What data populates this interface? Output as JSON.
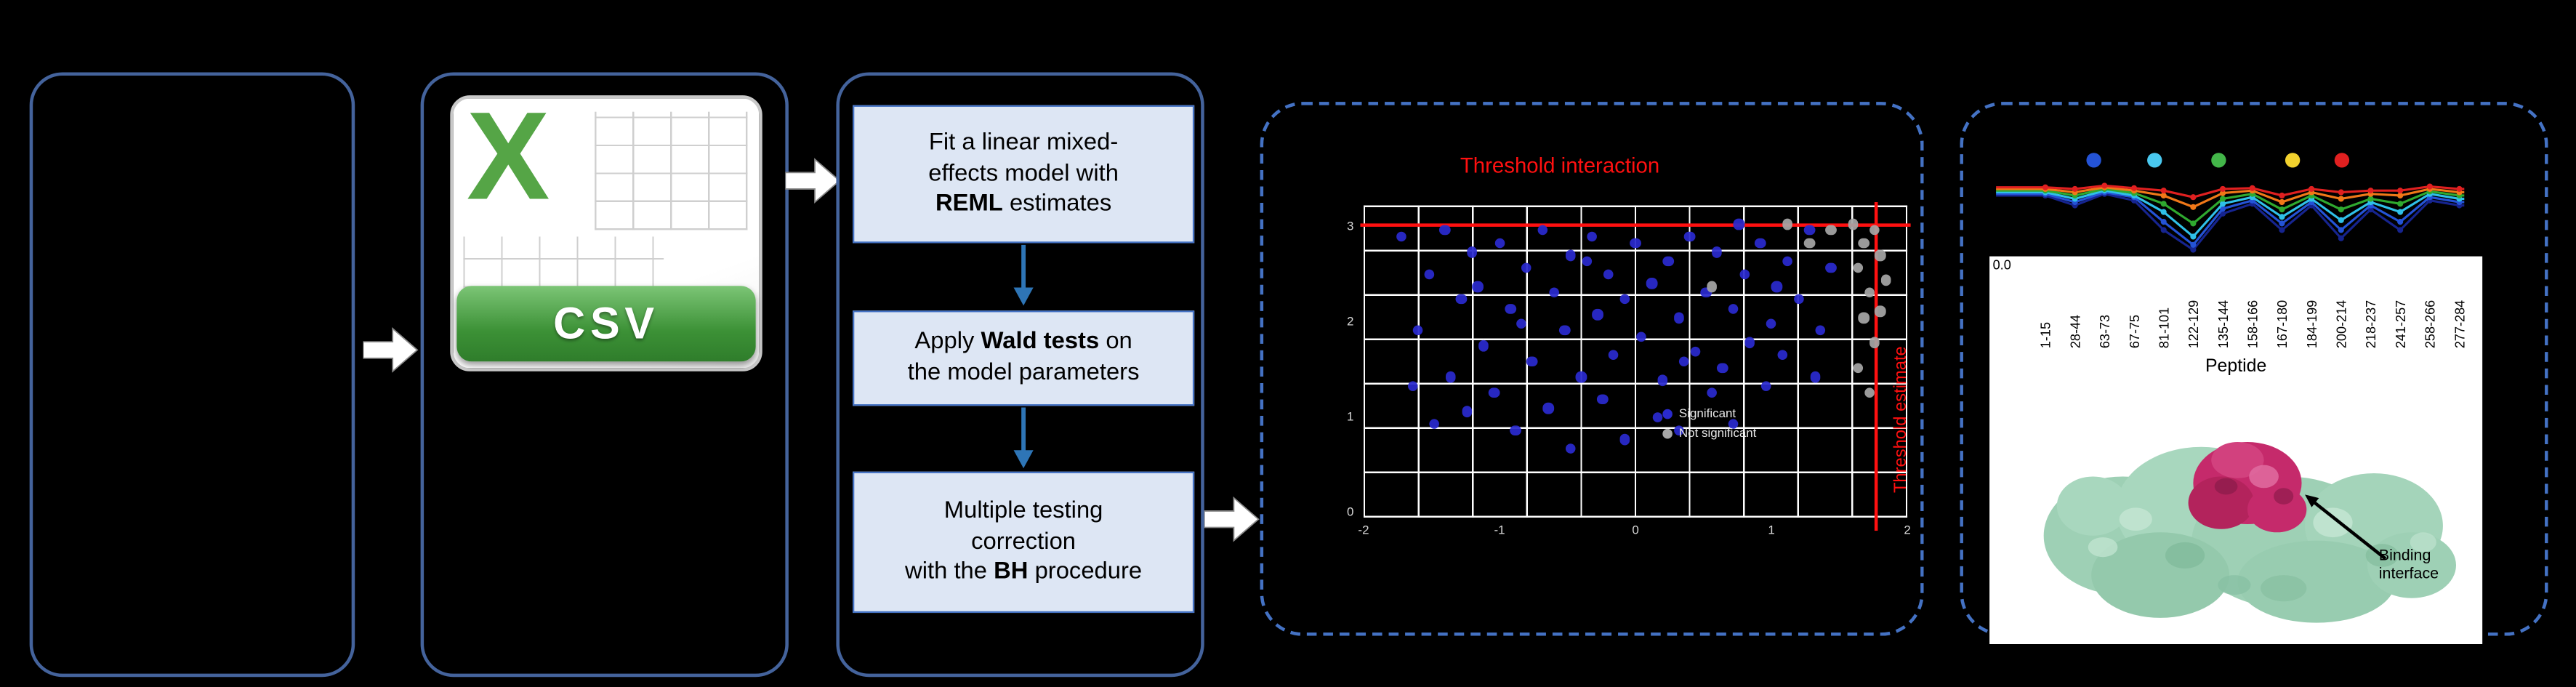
{
  "colors": {
    "background": "#000000",
    "solid_box_border": "#44639C",
    "dashed_box_border": "#4472C4",
    "step_fill": "#DDE6F4",
    "step_border": "#4472C4",
    "down_arrow": "#2E75B6",
    "block_arrow": "#FFFFFF",
    "threshold_red": "#FF1010",
    "significant_blue": "#2A2ACF",
    "nonsignificant_gray": "#A6A6A6",
    "excel_green": "#55A546",
    "binding_magenta": "#C52A6B",
    "protein_green": "#9ED0B5"
  },
  "csv_icon": {
    "letter": "X",
    "label": "CSV"
  },
  "steps": [
    {
      "pre": "Fit a linear mixed-\neffects model with\n",
      "bold": "REML",
      "post": " estimates"
    },
    {
      "pre": "Apply ",
      "bold": "Wald tests",
      "post": " on\nthe model parameters"
    },
    {
      "pre": "Multiple testing\ncorrection\nwith the ",
      "bold": "BH",
      "post": " procedure"
    }
  ],
  "volcano": {
    "type": "scatter",
    "title": "Threshold interaction",
    "side_label": "Threshold estimate",
    "x_ticks": [
      "-2",
      "-1",
      "0",
      "1",
      "2"
    ],
    "y_ticks": [
      "0",
      "1",
      "2",
      "3"
    ],
    "legend": [
      {
        "label": "Significant",
        "color": "#2A2ACF"
      },
      {
        "label": "Not significant",
        "color": "#A6A6A6"
      }
    ],
    "points_significant": [
      [
        0.07,
        0.1
      ],
      [
        0.12,
        0.22
      ],
      [
        0.15,
        0.08
      ],
      [
        0.18,
        0.3
      ],
      [
        0.2,
        0.15
      ],
      [
        0.22,
        0.45
      ],
      [
        0.25,
        0.12
      ],
      [
        0.27,
        0.33
      ],
      [
        0.3,
        0.2
      ],
      [
        0.31,
        0.5
      ],
      [
        0.33,
        0.08
      ],
      [
        0.35,
        0.28
      ],
      [
        0.37,
        0.4
      ],
      [
        0.38,
        0.16
      ],
      [
        0.4,
        0.55
      ],
      [
        0.42,
        0.1
      ],
      [
        0.43,
        0.35
      ],
      [
        0.45,
        0.22
      ],
      [
        0.46,
        0.48
      ],
      [
        0.48,
        0.3
      ],
      [
        0.5,
        0.12
      ],
      [
        0.51,
        0.42
      ],
      [
        0.53,
        0.25
      ],
      [
        0.55,
        0.56
      ],
      [
        0.56,
        0.18
      ],
      [
        0.58,
        0.36
      ],
      [
        0.6,
        0.1
      ],
      [
        0.61,
        0.47
      ],
      [
        0.63,
        0.28
      ],
      [
        0.65,
        0.15
      ],
      [
        0.66,
        0.52
      ],
      [
        0.68,
        0.33
      ],
      [
        0.7,
        0.22
      ],
      [
        0.71,
        0.44
      ],
      [
        0.73,
        0.12
      ],
      [
        0.75,
        0.38
      ],
      [
        0.76,
        0.26
      ],
      [
        0.78,
        0.18
      ],
      [
        0.8,
        0.3
      ],
      [
        0.82,
        0.08
      ],
      [
        0.24,
        0.6
      ],
      [
        0.34,
        0.65
      ],
      [
        0.44,
        0.62
      ],
      [
        0.54,
        0.68
      ],
      [
        0.64,
        0.6
      ],
      [
        0.1,
        0.4
      ],
      [
        0.16,
        0.55
      ],
      [
        0.48,
        0.75
      ],
      [
        0.58,
        0.72
      ],
      [
        0.28,
        0.72
      ],
      [
        0.38,
        0.78
      ],
      [
        0.68,
        0.7
      ],
      [
        0.74,
        0.58
      ],
      [
        0.84,
        0.4
      ],
      [
        0.86,
        0.2
      ],
      [
        0.13,
        0.7
      ],
      [
        0.21,
        0.26
      ],
      [
        0.29,
        0.38
      ],
      [
        0.41,
        0.18
      ],
      [
        0.59,
        0.5
      ],
      [
        0.69,
        0.06
      ],
      [
        0.77,
        0.48
      ],
      [
        0.83,
        0.55
      ],
      [
        0.09,
        0.58
      ],
      [
        0.19,
        0.66
      ]
    ],
    "points_not_significant": [
      [
        0.9,
        0.06
      ],
      [
        0.92,
        0.12
      ],
      [
        0.94,
        0.08
      ],
      [
        0.91,
        0.2
      ],
      [
        0.93,
        0.28
      ],
      [
        0.95,
        0.16
      ],
      [
        0.92,
        0.36
      ],
      [
        0.94,
        0.44
      ],
      [
        0.91,
        0.52
      ],
      [
        0.93,
        0.6
      ],
      [
        0.95,
        0.34
      ],
      [
        0.96,
        0.24
      ],
      [
        0.78,
        0.06
      ],
      [
        0.82,
        0.12
      ],
      [
        0.86,
        0.08
      ],
      [
        0.64,
        0.26
      ]
    ]
  },
  "uptake": {
    "type": "line",
    "y_tick_label": "0.0",
    "x_axis_label": "Peptide",
    "peptides": [
      "1-15",
      "28-44",
      "63-73",
      "67-75",
      "81-101",
      "122-129",
      "135-144",
      "158-166",
      "167-180",
      "184-199",
      "200-214",
      "218-237",
      "241-257",
      "258-266",
      "277-284"
    ],
    "legend_dot_colors": [
      "#2453D6",
      "#49C8EF",
      "#43B649",
      "#F2D22E",
      "#E02020"
    ],
    "series": [
      {
        "name": "navy",
        "color": "#16248F",
        "values": [
          0.72,
          0.6,
          0.74,
          0.66,
          0.3,
          0.06,
          0.5,
          0.62,
          0.3,
          0.6,
          0.2,
          0.55,
          0.3,
          0.66,
          0.6
        ]
      },
      {
        "name": "blue",
        "color": "#2453D6",
        "values": [
          0.74,
          0.64,
          0.76,
          0.7,
          0.4,
          0.12,
          0.56,
          0.66,
          0.38,
          0.64,
          0.3,
          0.6,
          0.4,
          0.7,
          0.64
        ]
      },
      {
        "name": "cyan",
        "color": "#2FC0E8",
        "values": [
          0.76,
          0.68,
          0.78,
          0.72,
          0.52,
          0.22,
          0.62,
          0.7,
          0.46,
          0.68,
          0.42,
          0.64,
          0.52,
          0.74,
          0.68
        ]
      },
      {
        "name": "green",
        "color": "#2FA92F",
        "values": [
          0.78,
          0.72,
          0.8,
          0.75,
          0.62,
          0.38,
          0.68,
          0.74,
          0.55,
          0.72,
          0.55,
          0.68,
          0.62,
          0.77,
          0.72
        ]
      },
      {
        "name": "orange",
        "color": "#F07818",
        "values": [
          0.8,
          0.76,
          0.82,
          0.78,
          0.72,
          0.58,
          0.75,
          0.78,
          0.64,
          0.76,
          0.68,
          0.74,
          0.72,
          0.8,
          0.76
        ]
      },
      {
        "name": "red",
        "color": "#E02020",
        "values": [
          0.82,
          0.8,
          0.84,
          0.81,
          0.78,
          0.7,
          0.8,
          0.81,
          0.72,
          0.8,
          0.76,
          0.78,
          0.78,
          0.83,
          0.8
        ]
      }
    ]
  },
  "protein": {
    "annotation": "Binding interface"
  }
}
